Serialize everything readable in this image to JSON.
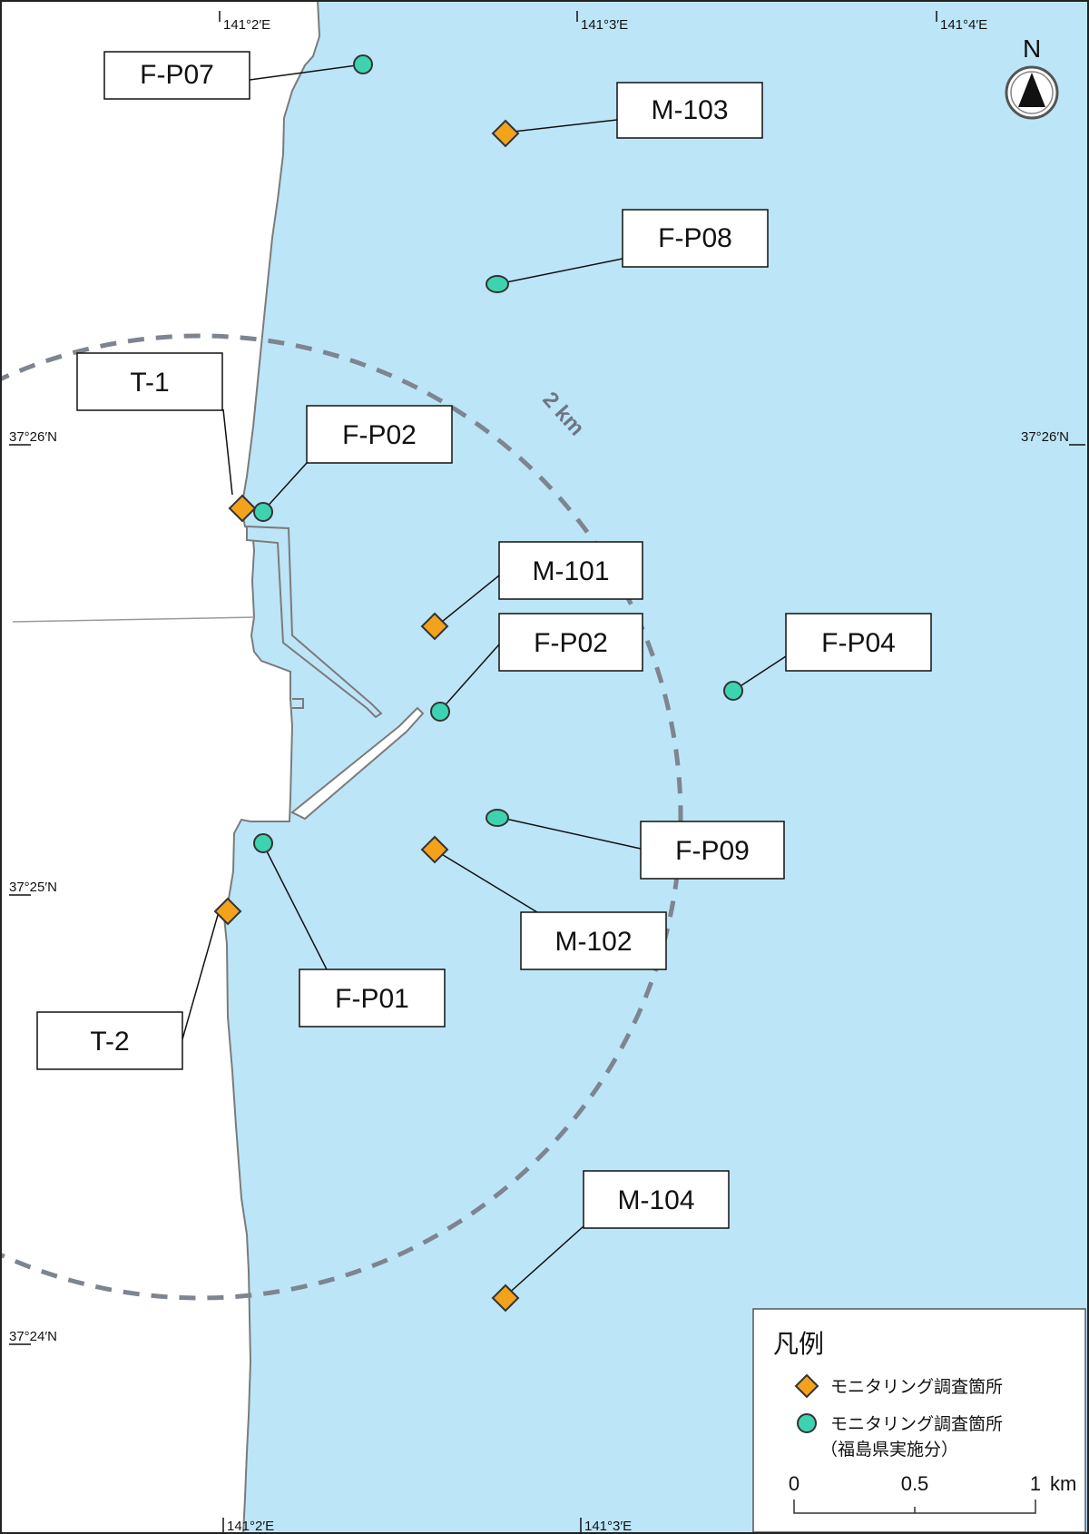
{
  "colors": {
    "sea": "#bde5f8",
    "land": "#ffffff",
    "coastline": "#7b7b7b",
    "ring": "#7d8590",
    "diamond_fill": "#f2a21b",
    "circle_fill": "#3ed3b0",
    "outline": "#333333"
  },
  "map": {
    "top_coords": [
      "141°2′E",
      "141°3′E",
      "141°4′E"
    ],
    "bottom_coords": [
      "141°2′E",
      "141°3′E"
    ],
    "left_coords": [
      "37°26′N",
      "37°25′N",
      "37°24′N"
    ],
    "right_coords": [
      "37°26′N"
    ],
    "ring_label": "2 km",
    "north_label": "N"
  },
  "stations": [
    {
      "id": "F-P07",
      "kind": "circle"
    },
    {
      "id": "M-103",
      "kind": "diamond"
    },
    {
      "id": "F-P08",
      "kind": "circle"
    },
    {
      "id": "T-1",
      "kind": "diamond"
    },
    {
      "id": "F-P02",
      "kind": "circle"
    },
    {
      "id": "M-101",
      "kind": "diamond"
    },
    {
      "id": "F-P02",
      "kind": "circle"
    },
    {
      "id": "F-P04",
      "kind": "circle"
    },
    {
      "id": "F-P09",
      "kind": "circle"
    },
    {
      "id": "M-102",
      "kind": "diamond"
    },
    {
      "id": "F-P01",
      "kind": "circle"
    },
    {
      "id": "T-2",
      "kind": "diamond"
    },
    {
      "id": "M-104",
      "kind": "diamond"
    }
  ],
  "legend": {
    "title": "凡例",
    "item1": "モニタリング調査箇所",
    "item2_line1": "モニタリング調査箇所",
    "item2_line2": "（福島県実施分）",
    "scale_labels": [
      "0",
      "0.5",
      "1"
    ],
    "scale_unit": "km"
  }
}
